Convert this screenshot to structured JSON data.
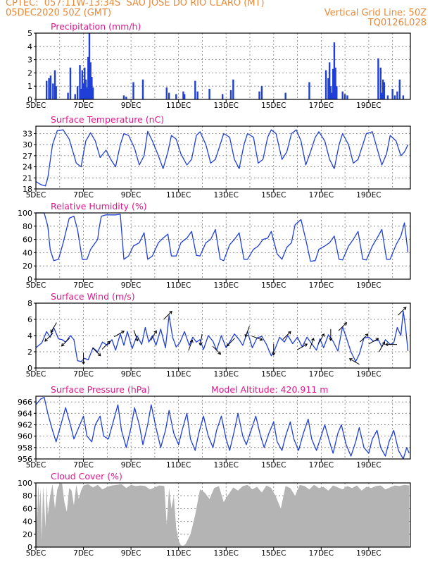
{
  "header": {
    "line1": "CPTEC:  057:11W-13:34S  SAO JOSE DO RIO CLARO (MT)",
    "line2_left": "05DEC2020 50Z (GMT)",
    "line2_right": "Vertical Grid Line: 50Z",
    "line3_right": "TQ0126L028"
  },
  "colors": {
    "header": "#e8893a",
    "title": "#e0188c",
    "series": "#1f3fd6",
    "cloud": "#b4b4b4",
    "grid": "#7a7a7a"
  },
  "x_tick_labels": [
    "5DEC",
    "7DEC",
    "9DEC",
    "11DEC",
    "13DEC",
    "15DEC",
    "17DEC",
    "19DEC"
  ],
  "chart_data": [
    {
      "type": "bar",
      "title": "Precipitation (mm/h)",
      "ylim": [
        0,
        5
      ],
      "yticks": [
        0,
        1,
        2,
        3,
        4,
        5
      ],
      "x": [
        0.45,
        0.55,
        0.62,
        0.72,
        0.8,
        0.85,
        1.35,
        1.45,
        1.65,
        1.75,
        1.85,
        1.9,
        1.95,
        2.0,
        2.05,
        2.1,
        2.15,
        2.2,
        2.25,
        2.3,
        2.35,
        2.4,
        3.7,
        3.8,
        4.1,
        4.5,
        5.5,
        5.6,
        5.9,
        6.2,
        6.25,
        6.7,
        6.8,
        7.3,
        7.85,
        8.2,
        8.3,
        9.4,
        9.5,
        10.5,
        11.5,
        12.2,
        12.3,
        12.35,
        12.4,
        12.45,
        12.5,
        12.55,
        12.6,
        12.65,
        12.9,
        13.0,
        13.1,
        14.4,
        14.5,
        14.55,
        14.6,
        14.65,
        14.8,
        15.0,
        15.1,
        15.2,
        15.3,
        15.45
      ],
      "values": [
        1.4,
        1.6,
        1.8,
        1.2,
        2.2,
        1.0,
        0.5,
        2.4,
        0.4,
        1.0,
        2.6,
        0.8,
        2.2,
        1.2,
        2.4,
        1.5,
        0.9,
        3.2,
        5.0,
        2.8,
        1.7,
        0.9,
        0.3,
        0.2,
        1.3,
        1.5,
        0.9,
        0.5,
        0.4,
        0.6,
        0.4,
        1.4,
        0.6,
        0.8,
        0.4,
        0.7,
        1.5,
        0.6,
        1.0,
        0.5,
        1.3,
        2.2,
        1.6,
        2.8,
        1.0,
        0.5,
        2.3,
        4.3,
        2.4,
        1.0,
        0.6,
        0.4,
        0.3,
        3.1,
        2.4,
        0.5,
        1.5,
        1.3,
        0.3,
        0.8,
        0.3,
        0.6,
        1.5,
        0.3
      ]
    },
    {
      "type": "line",
      "title": "Surface Temperature (nC)",
      "ylim": [
        18,
        35
      ],
      "yticks": [
        18,
        21,
        24,
        27,
        30,
        33
      ],
      "x": [
        0,
        0.2,
        0.4,
        0.5,
        0.7,
        0.9,
        1.15,
        1.4,
        1.7,
        1.9,
        2.1,
        2.3,
        2.5,
        2.7,
        2.95,
        3.15,
        3.35,
        3.55,
        3.7,
        3.9,
        4.15,
        4.35,
        4.55,
        4.7,
        4.9,
        5.15,
        5.35,
        5.55,
        5.7,
        5.9,
        6.1,
        6.35,
        6.55,
        6.75,
        6.9,
        7.15,
        7.35,
        7.55,
        7.75,
        7.9,
        8.15,
        8.35,
        8.55,
        8.75,
        8.9,
        9.15,
        9.35,
        9.55,
        9.75,
        9.9,
        10.1,
        10.35,
        10.55,
        10.75,
        10.95,
        11.15,
        11.35,
        11.55,
        11.75,
        11.9,
        12.15,
        12.35,
        12.55,
        12.75,
        12.9,
        13.15,
        13.35,
        13.55,
        13.75,
        13.9,
        14.15,
        14.35,
        14.55,
        14.75,
        14.9,
        15.15,
        15.35,
        15.5,
        15.65
      ],
      "values": [
        20,
        19.2,
        18.8,
        21,
        30,
        33.8,
        34,
        31.5,
        25,
        24,
        31,
        33.2,
        31,
        26.5,
        28.5,
        26,
        24,
        30,
        33,
        32.5,
        29,
        24.5,
        27,
        33.6,
        31,
        27,
        23.5,
        28,
        32.5,
        31.5,
        27.5,
        24.5,
        26,
        32.5,
        33.5,
        30,
        25,
        26,
        30,
        33,
        32,
        26,
        23.5,
        30,
        33,
        32,
        25,
        26,
        32,
        34,
        33,
        26,
        28,
        33,
        34,
        31,
        24.5,
        28,
        32,
        33.5,
        31,
        26,
        23.5,
        30,
        33,
        30,
        25,
        26,
        30,
        33,
        33.5,
        29,
        24.5,
        27.5,
        32.5,
        31,
        27,
        28,
        30
      ]
    },
    {
      "type": "line",
      "title": "Relative Humidity (%)",
      "ylim": [
        0,
        100
      ],
      "yticks": [
        0,
        20,
        40,
        60,
        80,
        100
      ],
      "x": [
        0,
        0.35,
        0.5,
        0.6,
        0.75,
        0.95,
        1.15,
        1.4,
        1.6,
        1.75,
        1.95,
        2.15,
        2.3,
        2.5,
        2.6,
        2.65,
        2.75,
        2.95,
        3.15,
        3.35,
        3.55,
        3.7,
        3.9,
        4.1,
        4.35,
        4.55,
        4.7,
        4.9,
        5.15,
        5.35,
        5.55,
        5.7,
        5.9,
        6.1,
        6.35,
        6.55,
        6.75,
        6.9,
        7.15,
        7.35,
        7.55,
        7.75,
        7.9,
        8.15,
        8.35,
        8.55,
        8.75,
        8.9,
        9.15,
        9.35,
        9.55,
        9.75,
        9.9,
        10.15,
        10.35,
        10.55,
        10.75,
        10.9,
        11.15,
        11.35,
        11.55,
        11.75,
        11.9,
        12.15,
        12.35,
        12.55,
        12.75,
        12.9,
        13.15,
        13.35,
        13.55,
        13.75,
        13.9,
        14.15,
        14.35,
        14.55,
        14.75,
        14.9,
        15.15,
        15.35,
        15.5,
        15.65
      ],
      "values": [
        100,
        100,
        80,
        45,
        28,
        30,
        55,
        92,
        95,
        75,
        30,
        30,
        45,
        55,
        60,
        75,
        95,
        97,
        97,
        97,
        98,
        30,
        35,
        50,
        55,
        70,
        30,
        35,
        55,
        62,
        68,
        35,
        35,
        55,
        62,
        72,
        36,
        35,
        55,
        60,
        75,
        30,
        28,
        52,
        60,
        70,
        30,
        30,
        45,
        50,
        60,
        62,
        72,
        38,
        30,
        48,
        55,
        82,
        90,
        60,
        27,
        28,
        45,
        50,
        55,
        65,
        30,
        29,
        50,
        60,
        72,
        30,
        29,
        50,
        62,
        75,
        30,
        30,
        52,
        65,
        85,
        40
      ]
    },
    {
      "type": "line",
      "title": "Surface Wind (m/s)",
      "ylim": [
        0,
        8
      ],
      "yticks": [
        0,
        2,
        4,
        6,
        8
      ],
      "x": [
        0,
        0.25,
        0.45,
        0.6,
        0.75,
        0.95,
        1.1,
        1.25,
        1.45,
        1.6,
        1.75,
        1.9,
        2.05,
        2.2,
        2.4,
        2.6,
        2.8,
        3.0,
        3.2,
        3.35,
        3.55,
        3.7,
        3.85,
        4.05,
        4.25,
        4.45,
        4.6,
        4.75,
        4.9,
        5.05,
        5.25,
        5.45,
        5.6,
        5.75,
        5.9,
        6.05,
        6.25,
        6.45,
        6.6,
        6.75,
        6.9,
        7.05,
        7.25,
        7.45,
        7.6,
        7.8,
        8.0,
        8.15,
        8.35,
        8.55,
        8.7,
        8.9,
        9.1,
        9.3,
        9.5,
        9.7,
        9.9,
        10.05,
        10.25,
        10.45,
        10.6,
        10.8,
        11.0,
        11.2,
        11.4,
        11.6,
        11.8,
        11.95,
        12.1,
        12.3,
        12.5,
        12.7,
        12.9,
        13.05,
        13.25,
        13.45,
        13.6,
        13.8,
        14.0,
        14.2,
        14.4,
        14.55,
        14.7,
        14.9,
        15.05,
        15.2,
        15.35,
        15.45,
        15.55,
        15.65
      ],
      "values": [
        2.5,
        3.1,
        4.5,
        3.8,
        5.0,
        3.6,
        3.5,
        3.2,
        4.0,
        3.5,
        0.9,
        0.8,
        1.2,
        1.0,
        2.5,
        2.0,
        3.2,
        2.8,
        3.5,
        2.2,
        4.2,
        2.8,
        4.5,
        2.4,
        4.0,
        2.9,
        5.0,
        3.2,
        4.0,
        2.8,
        4.8,
        2.5,
        6.5,
        3.8,
        2.6,
        3.1,
        4.5,
        2.8,
        3.8,
        3.2,
        3.5,
        2.3,
        4.0,
        3.3,
        2.2,
        4.0,
        2.5,
        3.2,
        4.2,
        3.5,
        2.8,
        4.5,
        2.5,
        3.7,
        3.9,
        2.9,
        1.5,
        2.3,
        3.8,
        3.2,
        4.0,
        3.0,
        3.8,
        2.6,
        3.8,
        3.0,
        2.2,
        3.6,
        2.5,
        4.1,
        3.3,
        2.1,
        5.1,
        3.8,
        2.0,
        0.8,
        1.7,
        3.7,
        3.8,
        3.3,
        3.5,
        2.6,
        3.5,
        2.9,
        3.1,
        5.0,
        4.0,
        7.0,
        5.0,
        2.1
      ]
    },
    {
      "type": "line",
      "title": "Surface Pressure (hPa)",
      "subtitle": "Model Altitude: 420.911 m",
      "ylim": [
        956,
        967
      ],
      "yticks": [
        956,
        958,
        960,
        962,
        964,
        966
      ],
      "x": [
        0,
        0.2,
        0.35,
        0.5,
        0.7,
        0.85,
        1.05,
        1.25,
        1.45,
        1.6,
        1.8,
        2.0,
        2.15,
        2.35,
        2.5,
        2.7,
        2.85,
        3.05,
        3.25,
        3.45,
        3.6,
        3.8,
        4.0,
        4.15,
        4.35,
        4.5,
        4.7,
        4.85,
        5.05,
        5.25,
        5.45,
        5.6,
        5.8,
        6.0,
        6.15,
        6.35,
        6.5,
        6.7,
        6.85,
        7.05,
        7.25,
        7.45,
        7.6,
        7.8,
        8.0,
        8.15,
        8.35,
        8.5,
        8.7,
        8.85,
        9.05,
        9.25,
        9.45,
        9.6,
        9.8,
        10.0,
        10.15,
        10.35,
        10.5,
        10.7,
        10.85,
        11.05,
        11.25,
        11.45,
        11.6,
        11.8,
        12.0,
        12.15,
        12.35,
        12.5,
        12.7,
        12.85,
        13.05,
        13.25,
        13.45,
        13.6,
        13.8,
        14.0,
        14.15,
        14.35,
        14.5,
        14.7,
        14.85,
        15.05,
        15.25,
        15.45,
        15.6,
        15.7
      ],
      "values": [
        965.5,
        966.5,
        966.8,
        964,
        961,
        959,
        962,
        965,
        962,
        959.5,
        961.5,
        963.5,
        960,
        959,
        962,
        963.5,
        960,
        959.5,
        962.5,
        965.5,
        961,
        958,
        961.5,
        965,
        962,
        958.5,
        962,
        965.5,
        961.5,
        958,
        961,
        964.5,
        960.5,
        958.5,
        961,
        964,
        959.5,
        957.5,
        960.5,
        963.5,
        960,
        958,
        961,
        963.5,
        959.5,
        957.5,
        961,
        964,
        960,
        958.5,
        961,
        963.5,
        960,
        958,
        960.5,
        962.5,
        959,
        957.5,
        960,
        962.5,
        959.5,
        957.5,
        960.5,
        963,
        959.5,
        957.5,
        960,
        962,
        959,
        957,
        960.5,
        962,
        958.5,
        956.5,
        959,
        961.5,
        958,
        957,
        959.5,
        961,
        958,
        956.5,
        959,
        961,
        957.5,
        956,
        958,
        957
      ]
    },
    {
      "type": "area",
      "title": "Cloud Cover (%)",
      "ylim": [
        0,
        100
      ],
      "yticks": [
        0,
        20,
        40,
        60,
        80,
        100
      ],
      "x": [
        0,
        0.05,
        0.1,
        0.15,
        0.2,
        0.25,
        0.3,
        0.35,
        0.4,
        0.45,
        0.5,
        0.6,
        0.7,
        0.8,
        0.9,
        1.0,
        1.1,
        1.2,
        1.3,
        1.4,
        1.5,
        1.6,
        1.7,
        1.8,
        1.9,
        2.0,
        2.2,
        2.4,
        2.6,
        2.8,
        3.0,
        3.2,
        3.4,
        3.6,
        3.8,
        4.0,
        4.2,
        4.4,
        4.6,
        4.8,
        5.0,
        5.2,
        5.4,
        5.5,
        5.6,
        5.7,
        5.8,
        5.9,
        6.0,
        6.1,
        6.2,
        6.3,
        6.5,
        6.7,
        6.9,
        7.1,
        7.3,
        7.5,
        7.7,
        7.9,
        8.1,
        8.3,
        8.5,
        8.7,
        8.9,
        9.1,
        9.3,
        9.5,
        9.7,
        9.9,
        10.1,
        10.3,
        10.5,
        10.7,
        10.9,
        11.1,
        11.3,
        11.5,
        11.7,
        11.9,
        12.1,
        12.3,
        12.5,
        12.7,
        12.9,
        13.1,
        13.3,
        13.5,
        13.7,
        13.9,
        14.1,
        14.3,
        14.5,
        14.7,
        14.9,
        15.1,
        15.3,
        15.5,
        15.7
      ],
      "values": [
        95,
        40,
        98,
        60,
        92,
        10,
        95,
        70,
        30,
        97,
        50,
        80,
        98,
        60,
        90,
        99,
        99,
        70,
        55,
        92,
        88,
        65,
        97,
        75,
        88,
        96,
        98,
        93,
        97,
        90,
        94,
        96,
        97,
        98,
        92,
        97,
        95,
        96,
        95,
        90,
        93,
        96,
        95,
        35,
        92,
        60,
        80,
        30,
        10,
        3,
        2,
        5,
        20,
        50,
        90,
        85,
        75,
        92,
        95,
        70,
        82,
        93,
        88,
        95,
        97,
        90,
        94,
        85,
        96,
        92,
        78,
        60,
        95,
        92,
        80,
        97,
        95,
        90,
        97,
        92,
        94,
        88,
        96,
        93,
        90,
        95,
        92,
        96,
        88,
        94,
        92,
        95,
        96,
        90,
        93,
        96,
        95,
        97,
        96
      ]
    }
  ],
  "wind_vectors": [
    {
      "x": 0.55,
      "dir": 225
    },
    {
      "x": 0.75,
      "dir": 210
    },
    {
      "x": 1.25,
      "dir": 225
    },
    {
      "x": 2.0,
      "dir": 180
    },
    {
      "x": 2.55,
      "dir": 135
    },
    {
      "x": 2.95,
      "dir": 45
    },
    {
      "x": 3.5,
      "dir": 60
    },
    {
      "x": 4.2,
      "dir": 160
    },
    {
      "x": 4.95,
      "dir": 30
    },
    {
      "x": 5.55,
      "dir": 45
    },
    {
      "x": 6.5,
      "dir": 20
    },
    {
      "x": 6.95,
      "dir": 190
    },
    {
      "x": 7.6,
      "dir": 135
    },
    {
      "x": 8.2,
      "dir": 225
    },
    {
      "x": 8.9,
      "dir": 200
    },
    {
      "x": 9.3,
      "dir": 110
    },
    {
      "x": 10.0,
      "dir": 180
    },
    {
      "x": 10.55,
      "dir": 45
    },
    {
      "x": 11.2,
      "dir": 60
    },
    {
      "x": 11.6,
      "dir": 20
    },
    {
      "x": 12.0,
      "dir": 30
    },
    {
      "x": 12.4,
      "dir": 180
    },
    {
      "x": 12.9,
      "dir": 45
    },
    {
      "x": 13.4,
      "dir": 300
    },
    {
      "x": 13.8,
      "dir": 45
    },
    {
      "x": 14.2,
      "dir": 60
    },
    {
      "x": 14.55,
      "dir": 30
    },
    {
      "x": 14.95,
      "dir": 270
    },
    {
      "x": 15.4,
      "dir": 45
    }
  ]
}
